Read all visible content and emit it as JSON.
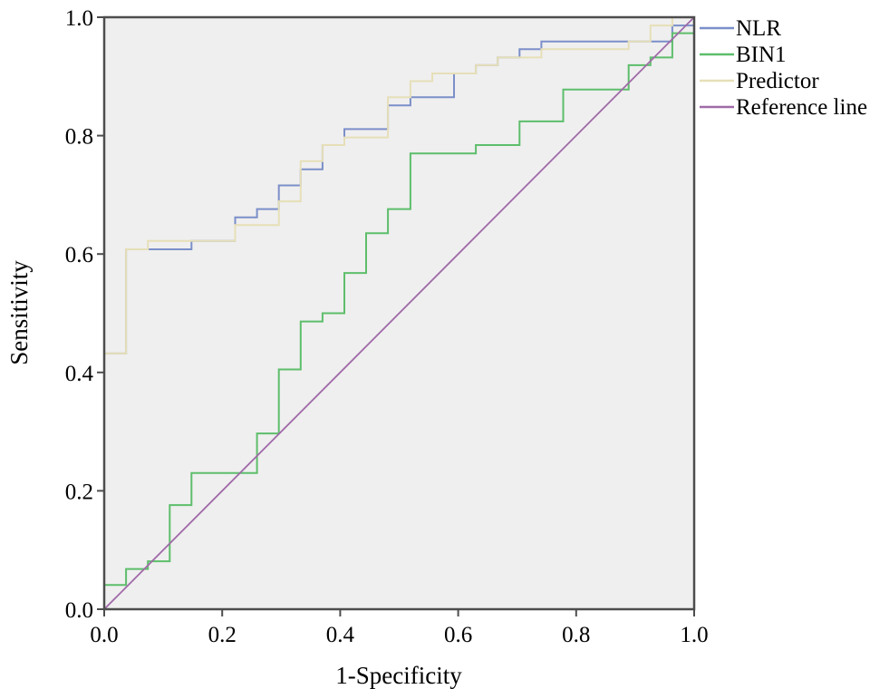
{
  "chart_data": {
    "type": "line",
    "title": "",
    "xlabel": "1-Specificity",
    "ylabel": "Sensitivity",
    "xlim": [
      0,
      1
    ],
    "ylim": [
      0,
      1
    ],
    "x_ticks": [
      "0.0",
      "0.2",
      "0.4",
      "0.6",
      "0.8",
      "1.0"
    ],
    "y_ticks": [
      "0.0",
      "0.2",
      "0.4",
      "0.6",
      "0.8",
      "1.0"
    ],
    "grid": false,
    "plot_background": "#efefef",
    "legend_position": "right-top",
    "series": [
      {
        "name": "NLR",
        "color": "#7b8fc9",
        "x": [
          0,
          0,
          0.037,
          0.037,
          0.074,
          0.074,
          0.148,
          0.148,
          0.222,
          0.222,
          0.259,
          0.259,
          0.296,
          0.296,
          0.333,
          0.333,
          0.37,
          0.37,
          0.407,
          0.407,
          0.481,
          0.481,
          0.519,
          0.519,
          0.593,
          0.593,
          0.63,
          0.63,
          0.667,
          0.667,
          0.704,
          0.704,
          0.741,
          0.741,
          0.889,
          0.889,
          0.926,
          0.926,
          0.963,
          0.963,
          1.0,
          1.0
        ],
        "y": [
          0,
          0.432,
          0.432,
          0.608,
          0.608,
          0.608,
          0.608,
          0.622,
          0.622,
          0.662,
          0.662,
          0.676,
          0.676,
          0.716,
          0.716,
          0.743,
          0.743,
          0.784,
          0.784,
          0.811,
          0.811,
          0.851,
          0.851,
          0.865,
          0.865,
          0.905,
          0.905,
          0.919,
          0.919,
          0.932,
          0.932,
          0.946,
          0.946,
          0.959,
          0.959,
          0.959,
          0.959,
          0.959,
          0.959,
          0.986,
          0.986,
          1.0
        ]
      },
      {
        "name": "BIN1",
        "color": "#5dbe6b",
        "x": [
          0,
          0,
          0.037,
          0.037,
          0.074,
          0.074,
          0.111,
          0.111,
          0.148,
          0.148,
          0.259,
          0.259,
          0.296,
          0.296,
          0.333,
          0.333,
          0.37,
          0.37,
          0.407,
          0.407,
          0.444,
          0.444,
          0.481,
          0.481,
          0.519,
          0.519,
          0.63,
          0.63,
          0.704,
          0.704,
          0.778,
          0.778,
          0.889,
          0.889,
          0.926,
          0.926,
          0.963,
          0.963,
          1.0,
          1.0
        ],
        "y": [
          0,
          0.041,
          0.041,
          0.068,
          0.068,
          0.081,
          0.081,
          0.176,
          0.176,
          0.23,
          0.23,
          0.297,
          0.297,
          0.405,
          0.405,
          0.486,
          0.486,
          0.5,
          0.5,
          0.568,
          0.568,
          0.635,
          0.635,
          0.676,
          0.676,
          0.77,
          0.77,
          0.784,
          0.784,
          0.824,
          0.824,
          0.878,
          0.878,
          0.919,
          0.919,
          0.932,
          0.932,
          0.973,
          0.973,
          1.0
        ]
      },
      {
        "name": "Predictor",
        "color": "#e6dfb8",
        "x": [
          0,
          0,
          0.037,
          0.037,
          0.074,
          0.074,
          0.222,
          0.222,
          0.296,
          0.296,
          0.333,
          0.333,
          0.37,
          0.37,
          0.407,
          0.407,
          0.481,
          0.481,
          0.519,
          0.519,
          0.556,
          0.556,
          0.63,
          0.63,
          0.667,
          0.667,
          0.741,
          0.741,
          0.889,
          0.889,
          0.926,
          0.926,
          0.963,
          0.963,
          1.0,
          1.0
        ],
        "y": [
          0,
          0.432,
          0.432,
          0.608,
          0.608,
          0.622,
          0.622,
          0.649,
          0.649,
          0.689,
          0.689,
          0.757,
          0.757,
          0.784,
          0.784,
          0.797,
          0.797,
          0.865,
          0.865,
          0.892,
          0.892,
          0.905,
          0.905,
          0.919,
          0.919,
          0.932,
          0.932,
          0.946,
          0.946,
          0.959,
          0.959,
          0.986,
          0.986,
          1.0,
          1.0,
          1.0
        ]
      },
      {
        "name": "Reference line",
        "color": "#a06aa8",
        "x": [
          0,
          1
        ],
        "y": [
          0,
          1
        ]
      }
    ]
  }
}
